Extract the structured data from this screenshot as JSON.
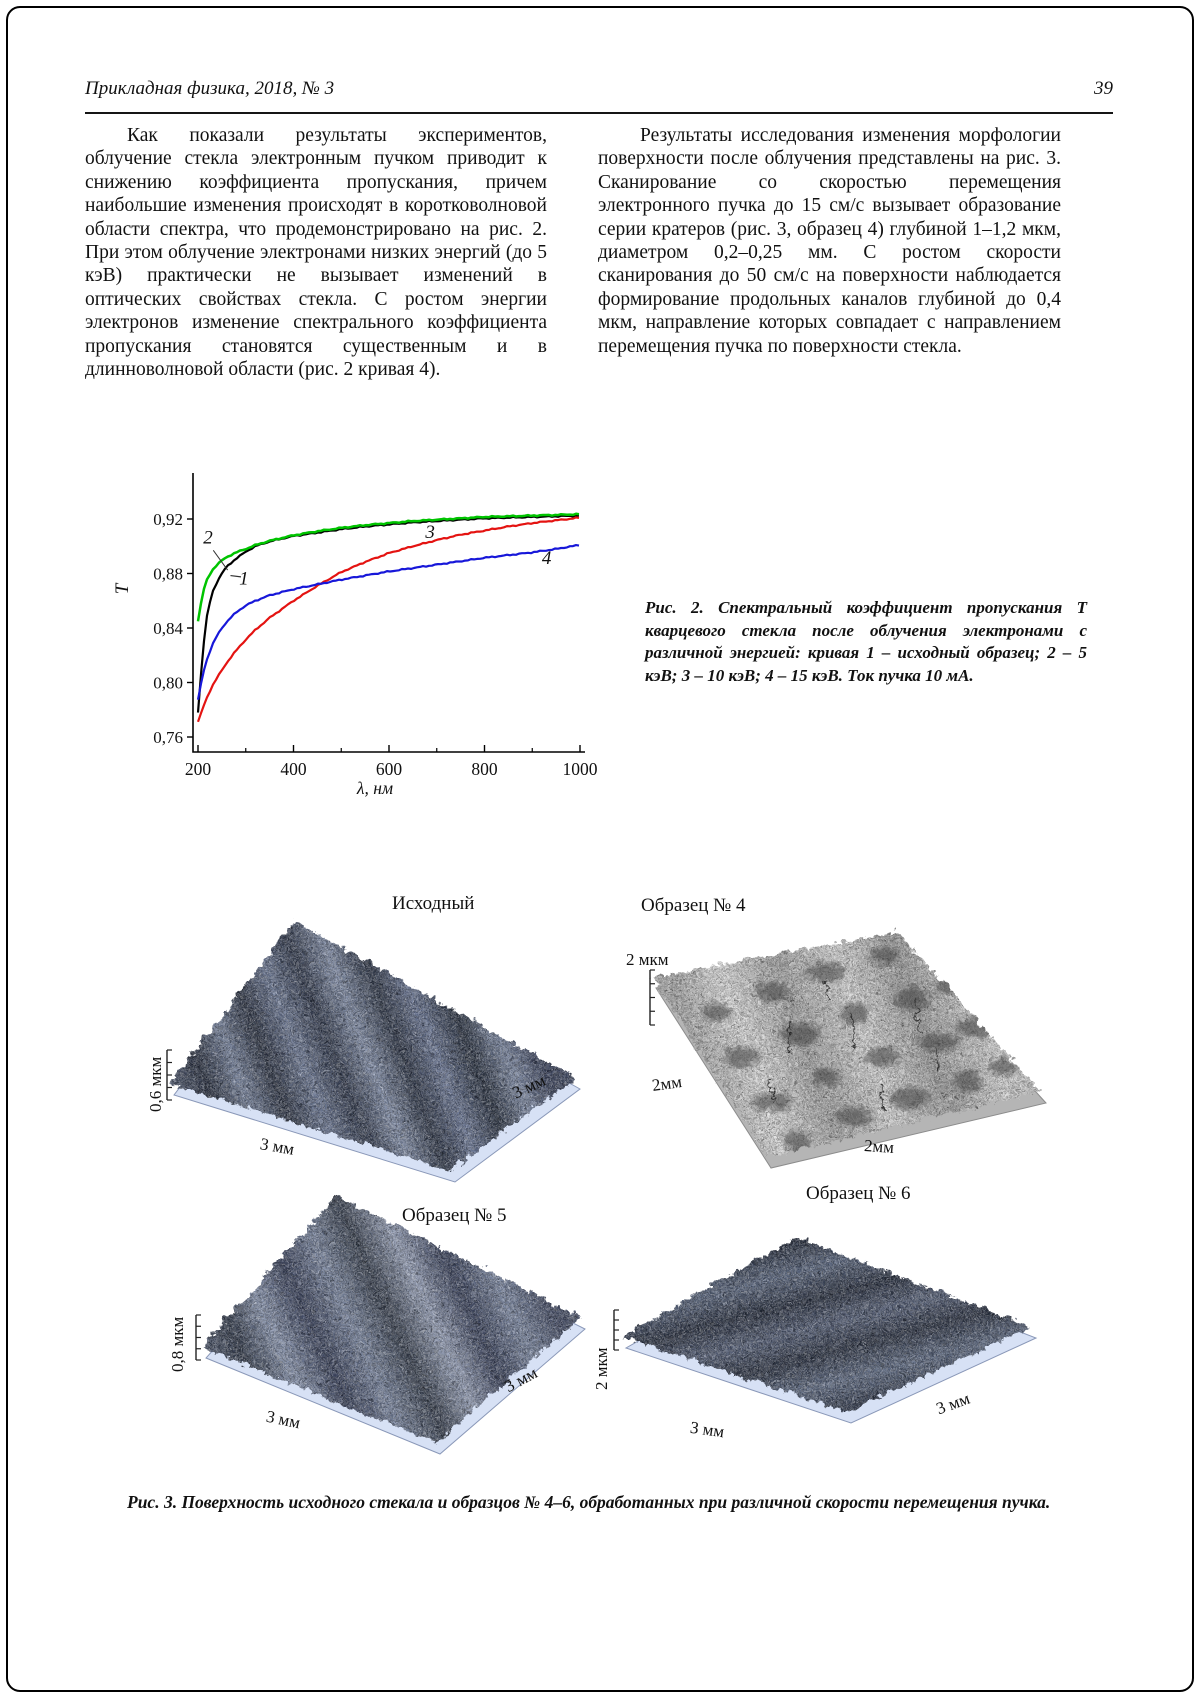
{
  "page": {
    "header_left": "Прикладная физика, 2018, № 3",
    "page_number": "39"
  },
  "columns": {
    "left_paragraph": "Как показали результаты экспериментов, облучение стекла электронным пучком приводит к снижению коэффициента пропускания, причем наибольшие изменения происходят в коротковолновой области спектра, что продемонстрировано на рис. 2. При этом облучение электронами низких энергий (до 5 кэВ) практически не вызывает изменений в оптических свойствах стекла. С ростом энергии электронов изменение спектрального коэффициента пропускания становятся существенным и в длинноволновой области (рис. 2 кривая 4).",
    "right_paragraph": "Результаты исследования изменения морфологии поверхности после облучения представлены на рис. 3. Сканирование со скоростью перемещения электронного пучка до 15 см/с вызывает образование серии кратеров (рис. 3, образец 4) глубиной 1–1,2 мкм, диаметром 0,2–0,25 мм. С ростом скорости сканирования до 50 см/с на поверхности наблюдается формирование продольных каналов глубиной до 0,4 мкм, направление которых совпадает с направлением перемещения пучка по поверхности стекла."
  },
  "figure2": {
    "caption": "Рис. 2. Спектральный коэффициент пропускания Т кварцевого стекла после облучения электронами с различной энергией: кривая 1 – исходный образец; 2 – 5 кэВ; 3 – 10 кэВ; 4 – 15 кэВ. Ток пучка 10 мА."
  },
  "chart_data": {
    "type": "line",
    "xlabel": "λ, нм",
    "ylabel": "T",
    "xlim": [
      185,
      1010
    ],
    "ylim": [
      0.75,
      0.955
    ],
    "x_ticks": [
      200,
      400,
      600,
      800,
      1000
    ],
    "x_minor_ticks": [
      300,
      500,
      700,
      900
    ],
    "y_ticks": [
      0.76,
      0.8,
      0.84,
      0.88,
      0.92
    ],
    "y_tick_labels": [
      "0,76",
      "0,80",
      "0,84",
      "0,88",
      "0,92"
    ],
    "grid": false,
    "x": [
      200,
      210,
      220,
      230,
      240,
      250,
      260,
      280,
      300,
      320,
      350,
      400,
      450,
      500,
      550,
      600,
      650,
      700,
      750,
      800,
      850,
      900,
      950,
      1000
    ],
    "series": [
      {
        "name": "1",
        "legend": "исходный образец",
        "color": "#000000",
        "T": [
          0.778,
          0.823,
          0.852,
          0.866,
          0.874,
          0.88,
          0.885,
          0.891,
          0.896,
          0.9,
          0.9035,
          0.9075,
          0.91,
          0.9125,
          0.9145,
          0.916,
          0.9175,
          0.9185,
          0.9195,
          0.9205,
          0.921,
          0.9215,
          0.922,
          0.9225
        ]
      },
      {
        "name": "2",
        "legend": "5 кэВ",
        "color": "#00c400",
        "T": [
          0.845,
          0.866,
          0.8765,
          0.8825,
          0.8865,
          0.8895,
          0.892,
          0.8955,
          0.898,
          0.9008,
          0.904,
          0.908,
          0.911,
          0.9135,
          0.9155,
          0.917,
          0.9185,
          0.9195,
          0.9205,
          0.9215,
          0.922,
          0.9225,
          0.923,
          0.9235
        ]
      },
      {
        "name": "3",
        "legend": "10 кэВ",
        "color": "#e41311",
        "T": [
          0.771,
          0.781,
          0.79,
          0.7975,
          0.8035,
          0.809,
          0.8145,
          0.8235,
          0.8315,
          0.8385,
          0.8475,
          0.86,
          0.871,
          0.881,
          0.8885,
          0.895,
          0.9,
          0.9045,
          0.9085,
          0.9115,
          0.9145,
          0.917,
          0.919,
          0.921
        ]
      },
      {
        "name": "4",
        "legend": "15 кэВ",
        "color": "#1717d9",
        "T": [
          0.787,
          0.806,
          0.8185,
          0.8275,
          0.8345,
          0.84,
          0.8445,
          0.8515,
          0.8565,
          0.86,
          0.864,
          0.8685,
          0.872,
          0.8755,
          0.8785,
          0.8815,
          0.884,
          0.8865,
          0.889,
          0.8915,
          0.8935,
          0.8955,
          0.898,
          0.901
        ]
      }
    ],
    "curve_labels": [
      {
        "text": "2",
        "x": 221,
        "T": 0.9065
      },
      {
        "text": "1",
        "x": 296,
        "T": 0.8765
      },
      {
        "text": "3",
        "x": 686,
        "T": 0.9105
      },
      {
        "text": "4",
        "x": 930,
        "T": 0.8915
      }
    ]
  },
  "figure3": {
    "caption": "Рис. 3. Поверхность исходного стекала и образцов № 4–6, обработанных при различной скорости перемещения пучка.",
    "panels": [
      {
        "title": "Исходный",
        "z_label": "0,6 мкм",
        "bottom_label": "3 мм",
        "right_label": "3 мм"
      },
      {
        "title": "Образец № 4",
        "z_label": "2 мкм",
        "left_label": "2мм",
        "bottom_label": "2мм"
      },
      {
        "title": "Образец № 5",
        "z_label": "0,8 мкм",
        "bottom_label": "3 мм",
        "right_label": "3 мм"
      },
      {
        "title": "Образец № 6",
        "z_label": "2 мкм",
        "bottom_label": "3 мм",
        "right_label": "3 мм"
      }
    ]
  }
}
